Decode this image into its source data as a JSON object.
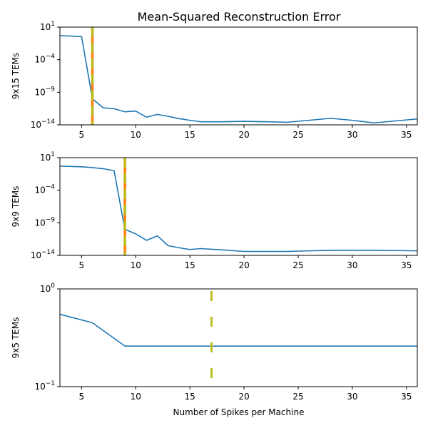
{
  "figure_title": "Mean-Squared Reconstruction Error",
  "colors": {
    "line": "#1f77b4",
    "marker_orange": "#ff7f0e",
    "marker_olive": "#bcbd22",
    "axes": "#000000"
  },
  "chart_data": [
    {
      "type": "line",
      "title": "Mean-Squared Reconstruction Error",
      "ylabel": "9x15 TEMs",
      "xlabel": "",
      "xlim": [
        3,
        36
      ],
      "ylim": [
        1e-14,
        10
      ],
      "yscale": "log",
      "xticks": [
        5,
        10,
        15,
        20,
        25,
        30,
        35
      ],
      "yticks": [
        {
          "value": 10,
          "base": "10",
          "exp": "1"
        },
        {
          "value": 0.0001,
          "base": "10",
          "exp": "−4"
        },
        {
          "value": 1e-09,
          "base": "10",
          "exp": "−9"
        },
        {
          "value": 1e-14,
          "base": "10",
          "exp": "−14"
        }
      ],
      "x": [
        3,
        5,
        6,
        7,
        8,
        9,
        10,
        11,
        12,
        13,
        14,
        15,
        16,
        18,
        20,
        22,
        24,
        26,
        28,
        30,
        32,
        34,
        36
      ],
      "y": [
        0.5,
        0.35,
        1e-10,
        4e-12,
        3e-12,
        1e-12,
        1.3e-12,
        1.5e-13,
        4e-13,
        2e-13,
        9e-14,
        5e-14,
        3e-14,
        3e-14,
        3.5e-14,
        3e-14,
        2.5e-14,
        5e-14,
        1e-13,
        5e-14,
        2e-14,
        4e-14,
        8e-14
      ],
      "vline": {
        "x": 6,
        "style": "dual"
      }
    },
    {
      "type": "line",
      "title": "",
      "ylabel": "9x9 TEMs",
      "xlabel": "",
      "xlim": [
        3,
        36
      ],
      "ylim": [
        1e-14,
        10
      ],
      "yscale": "log",
      "xticks": [
        5,
        10,
        15,
        20,
        25,
        30,
        35
      ],
      "yticks": [
        {
          "value": 10,
          "base": "10",
          "exp": "1"
        },
        {
          "value": 0.0001,
          "base": "10",
          "exp": "−4"
        },
        {
          "value": 1e-09,
          "base": "10",
          "exp": "−9"
        },
        {
          "value": 1e-14,
          "base": "10",
          "exp": "−14"
        }
      ],
      "x": [
        3,
        5,
        6,
        7,
        8,
        9,
        10,
        11,
        12,
        13,
        14,
        15,
        16,
        18,
        20,
        22,
        24,
        26,
        28,
        30,
        32,
        34,
        36
      ],
      "y": [
        0.5,
        0.4,
        0.3,
        0.2,
        0.1,
        1e-10,
        2e-11,
        2e-12,
        1e-11,
        3e-13,
        1.5e-13,
        8e-14,
        1.1e-13,
        7e-14,
        4e-14,
        4e-14,
        4e-14,
        5e-14,
        6e-14,
        6e-14,
        6e-14,
        5.5e-14,
        5e-14
      ],
      "vline": {
        "x": 9,
        "style": "dual"
      }
    },
    {
      "type": "line",
      "title": "",
      "ylabel": "9x5 TEMs",
      "xlabel": "Number of Spikes per Machine",
      "xlim": [
        3,
        36
      ],
      "ylim": [
        0.1,
        1
      ],
      "yscale": "log",
      "xticks": [
        5,
        10,
        15,
        20,
        25,
        30,
        35
      ],
      "yticks": [
        {
          "value": 1,
          "base": "10",
          "exp": "0"
        },
        {
          "value": 0.1,
          "base": "10",
          "exp": "−1"
        }
      ],
      "x": [
        3,
        6,
        9,
        12,
        15,
        18,
        21,
        24,
        27,
        30,
        33,
        36
      ],
      "y": [
        0.55,
        0.45,
        0.26,
        0.26,
        0.26,
        0.26,
        0.26,
        0.26,
        0.26,
        0.26,
        0.26,
        0.26
      ],
      "vline": {
        "x": 17,
        "style": "single"
      }
    }
  ]
}
